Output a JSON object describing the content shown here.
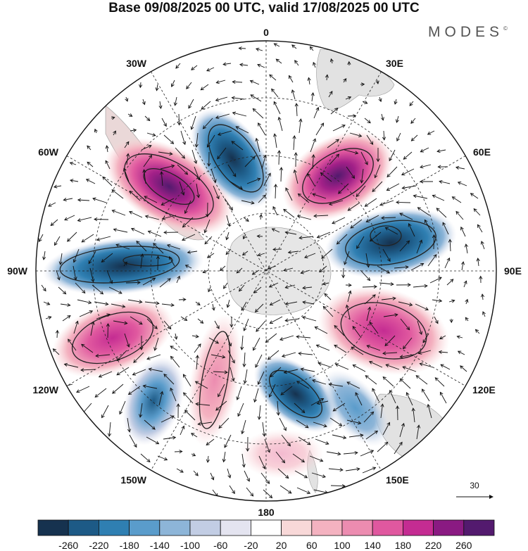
{
  "title": "Base 09/08/2025 00 UTC, valid 17/08/2025 00 UTC",
  "brand": "MODES",
  "brand_mark": "©",
  "longitude_labels": {
    "lon_0": "0",
    "lon_30E": "30E",
    "lon_60E": "60E",
    "lon_90E": "90E",
    "lon_120E": "120E",
    "lon_150E": "150E",
    "lon_180": "180",
    "lon_150W": "150W",
    "lon_120W": "120W",
    "lon_90W": "90W",
    "lon_60W": "60W",
    "lon_30W": "30W"
  },
  "reference_vector": {
    "label": "30",
    "value": 30
  },
  "colorbar": {
    "ticks": [
      "-260",
      "-220",
      "-180",
      "-140",
      "-100",
      "-60",
      "-20",
      "20",
      "60",
      "100",
      "140",
      "180",
      "220",
      "260"
    ],
    "colors": [
      "#16324f",
      "#1d5a86",
      "#2f7fb2",
      "#5a9ccb",
      "#8db5d8",
      "#c2cde4",
      "#e4e4f0",
      "#ffffff",
      "#f8d8d8",
      "#f4b2c0",
      "#ec8cb0",
      "#e0589f",
      "#c42c92",
      "#8a1a82",
      "#531a6e"
    ]
  },
  "anomaly_centers": [
    {
      "name": "60W-high",
      "value": 240
    },
    {
      "name": "30W-low",
      "value": -200
    },
    {
      "name": "40E-high",
      "value": 200
    },
    {
      "name": "75E-low",
      "value": -220
    },
    {
      "name": "90W-low",
      "value": -230
    },
    {
      "name": "110W-high",
      "value": 190
    },
    {
      "name": "110E-high",
      "value": 190
    },
    {
      "name": "140W-low",
      "value": -120
    },
    {
      "name": "170W-high",
      "value": 140
    },
    {
      "name": "160E-low",
      "value": -180
    },
    {
      "name": "140E-low",
      "value": -120
    }
  ]
}
